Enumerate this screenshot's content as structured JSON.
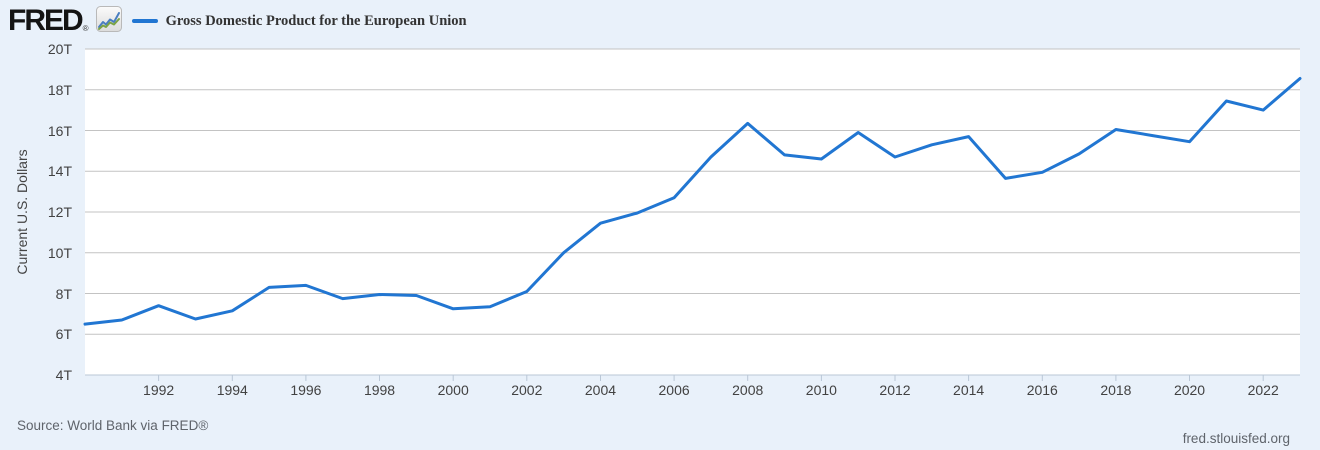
{
  "header": {
    "logo": {
      "text": "FRED",
      "registered": "®"
    },
    "legend": {
      "label": "Gross Domestic Product for the European Union"
    }
  },
  "chart_data": {
    "type": "line",
    "title": "Gross Domestic Product for the European Union",
    "ylabel": "Current U.S. Dollars",
    "unit": "trillions of U.S. dollars",
    "x": [
      1990,
      1991,
      1992,
      1993,
      1994,
      1995,
      1996,
      1997,
      1998,
      1999,
      2000,
      2001,
      2002,
      2003,
      2004,
      2005,
      2006,
      2007,
      2008,
      2009,
      2010,
      2011,
      2012,
      2013,
      2014,
      2015,
      2016,
      2017,
      2018,
      2019,
      2020,
      2021,
      2022,
      2023
    ],
    "series": [
      {
        "name": "Gross Domestic Product for the European Union",
        "color": "#2176d2",
        "values": [
          6.5,
          6.7,
          7.4,
          6.75,
          7.15,
          8.3,
          8.4,
          7.75,
          7.95,
          7.9,
          7.25,
          7.35,
          8.1,
          10.0,
          11.45,
          11.95,
          12.7,
          14.7,
          16.35,
          14.8,
          14.6,
          15.9,
          14.7,
          15.3,
          15.7,
          13.65,
          13.95,
          14.85,
          16.05,
          15.75,
          15.45,
          17.45,
          17.0,
          18.55
        ]
      }
    ],
    "xlim": [
      1990,
      2023
    ],
    "ylim": [
      4,
      20
    ],
    "y_ticks": [
      4,
      6,
      8,
      10,
      12,
      14,
      16,
      18,
      20
    ],
    "y_tick_labels": [
      "4T",
      "6T",
      "8T",
      "10T",
      "12T",
      "14T",
      "16T",
      "18T",
      "20T"
    ],
    "x_ticks": [
      1992,
      1994,
      1996,
      1998,
      2000,
      2002,
      2004,
      2006,
      2008,
      2010,
      2012,
      2014,
      2016,
      2018,
      2020,
      2022
    ],
    "grid": "horizontal",
    "legend_position": "top-left"
  },
  "footer": {
    "source": "Source: World Bank via FRED®",
    "site": "fred.stlouisfed.org"
  },
  "colors": {
    "background": "#e9f1fa",
    "plot_background": "#ffffff",
    "gridline": "#c3c3c3",
    "axis_line": "#bac7d6",
    "line": "#2176d2",
    "tick_text": "#424242",
    "footer_text": "#5f646b"
  }
}
